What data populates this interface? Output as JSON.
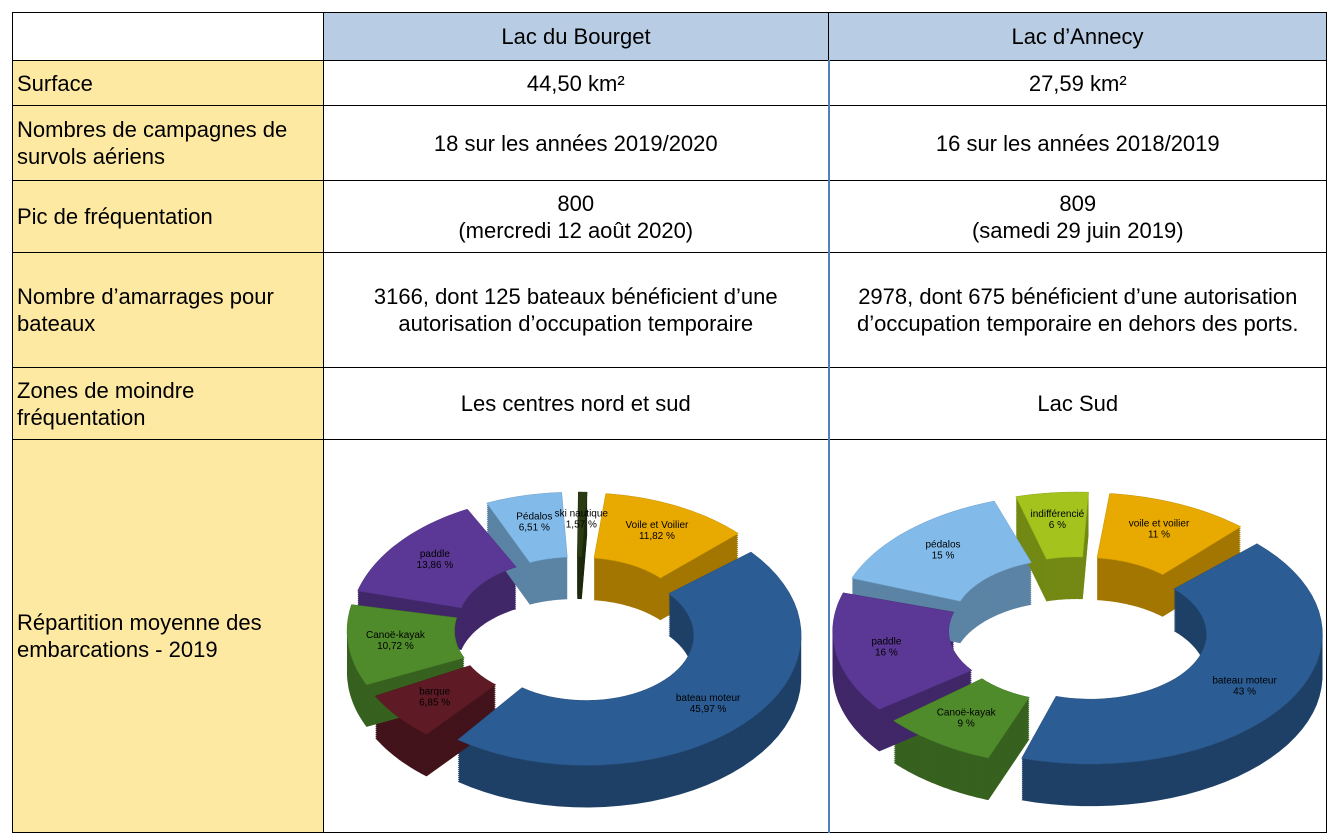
{
  "table": {
    "header": [
      "Lac du Bourget",
      "Lac d’Annecy"
    ],
    "rows": [
      {
        "label": "Surface",
        "cells": [
          "44,50 km²",
          "27,59 km²"
        ]
      },
      {
        "label": "Nombres de campagnes de survols aériens",
        "cells": [
          "18 sur les années 2019/2020",
          "16 sur les années 2018/2019"
        ]
      },
      {
        "label": "Pic de fréquentation",
        "cells": [
          "800\n(mercredi 12 août 2020)",
          "809\n(samedi 29 juin 2019)"
        ]
      },
      {
        "label": "Nombre d’amarrages pour bateaux",
        "cells": [
          "3166, dont 125 bateaux bénéficient d’une autorisation d’occupation temporaire",
          "2978, dont 675 bénéficient d’une autorisation d’occupation temporaire en dehors des ports."
        ]
      },
      {
        "label": "Zones de moindre fréquentation",
        "cells": [
          "Les centres nord et sud",
          "Lac Sud"
        ]
      },
      {
        "label": "Répartition moyenne des embarcations - 2019"
      }
    ]
  },
  "chart_data": [
    {
      "type": "pie",
      "categories": [
        "Voile et Voilier",
        "bateau moteur",
        "barque",
        "Canoë-kayak",
        "paddle",
        "Pédalos",
        "ski nautique"
      ],
      "values": [
        11.82,
        45.97,
        6.85,
        10.72,
        13.86,
        6.51,
        1.57
      ],
      "value_labels": [
        "11,82 %",
        "45,97 %",
        "6,85 %",
        "10,72 %",
        "13,86 %",
        "6,51 %",
        "1,57 %"
      ],
      "colors": [
        "#e8a900",
        "#2b5c93",
        "#5e1b25",
        "#4f8b2b",
        "#5b3895",
        "#82bbea",
        "#2a3a12"
      ]
    },
    {
      "type": "pie",
      "categories": [
        "voile et voilier",
        "bateau moteur",
        "Canoë-kayak",
        "paddle",
        "pédalos",
        "indifférencié"
      ],
      "values": [
        11,
        43,
        9,
        16,
        15,
        6
      ],
      "value_labels": [
        "11 %",
        "43 %",
        "9 %",
        "16 %",
        "15 %",
        "6 %"
      ],
      "colors": [
        "#e8a900",
        "#2b5c93",
        "#4f8b2b",
        "#5b3895",
        "#82bbea",
        "#a4c31d"
      ]
    }
  ]
}
